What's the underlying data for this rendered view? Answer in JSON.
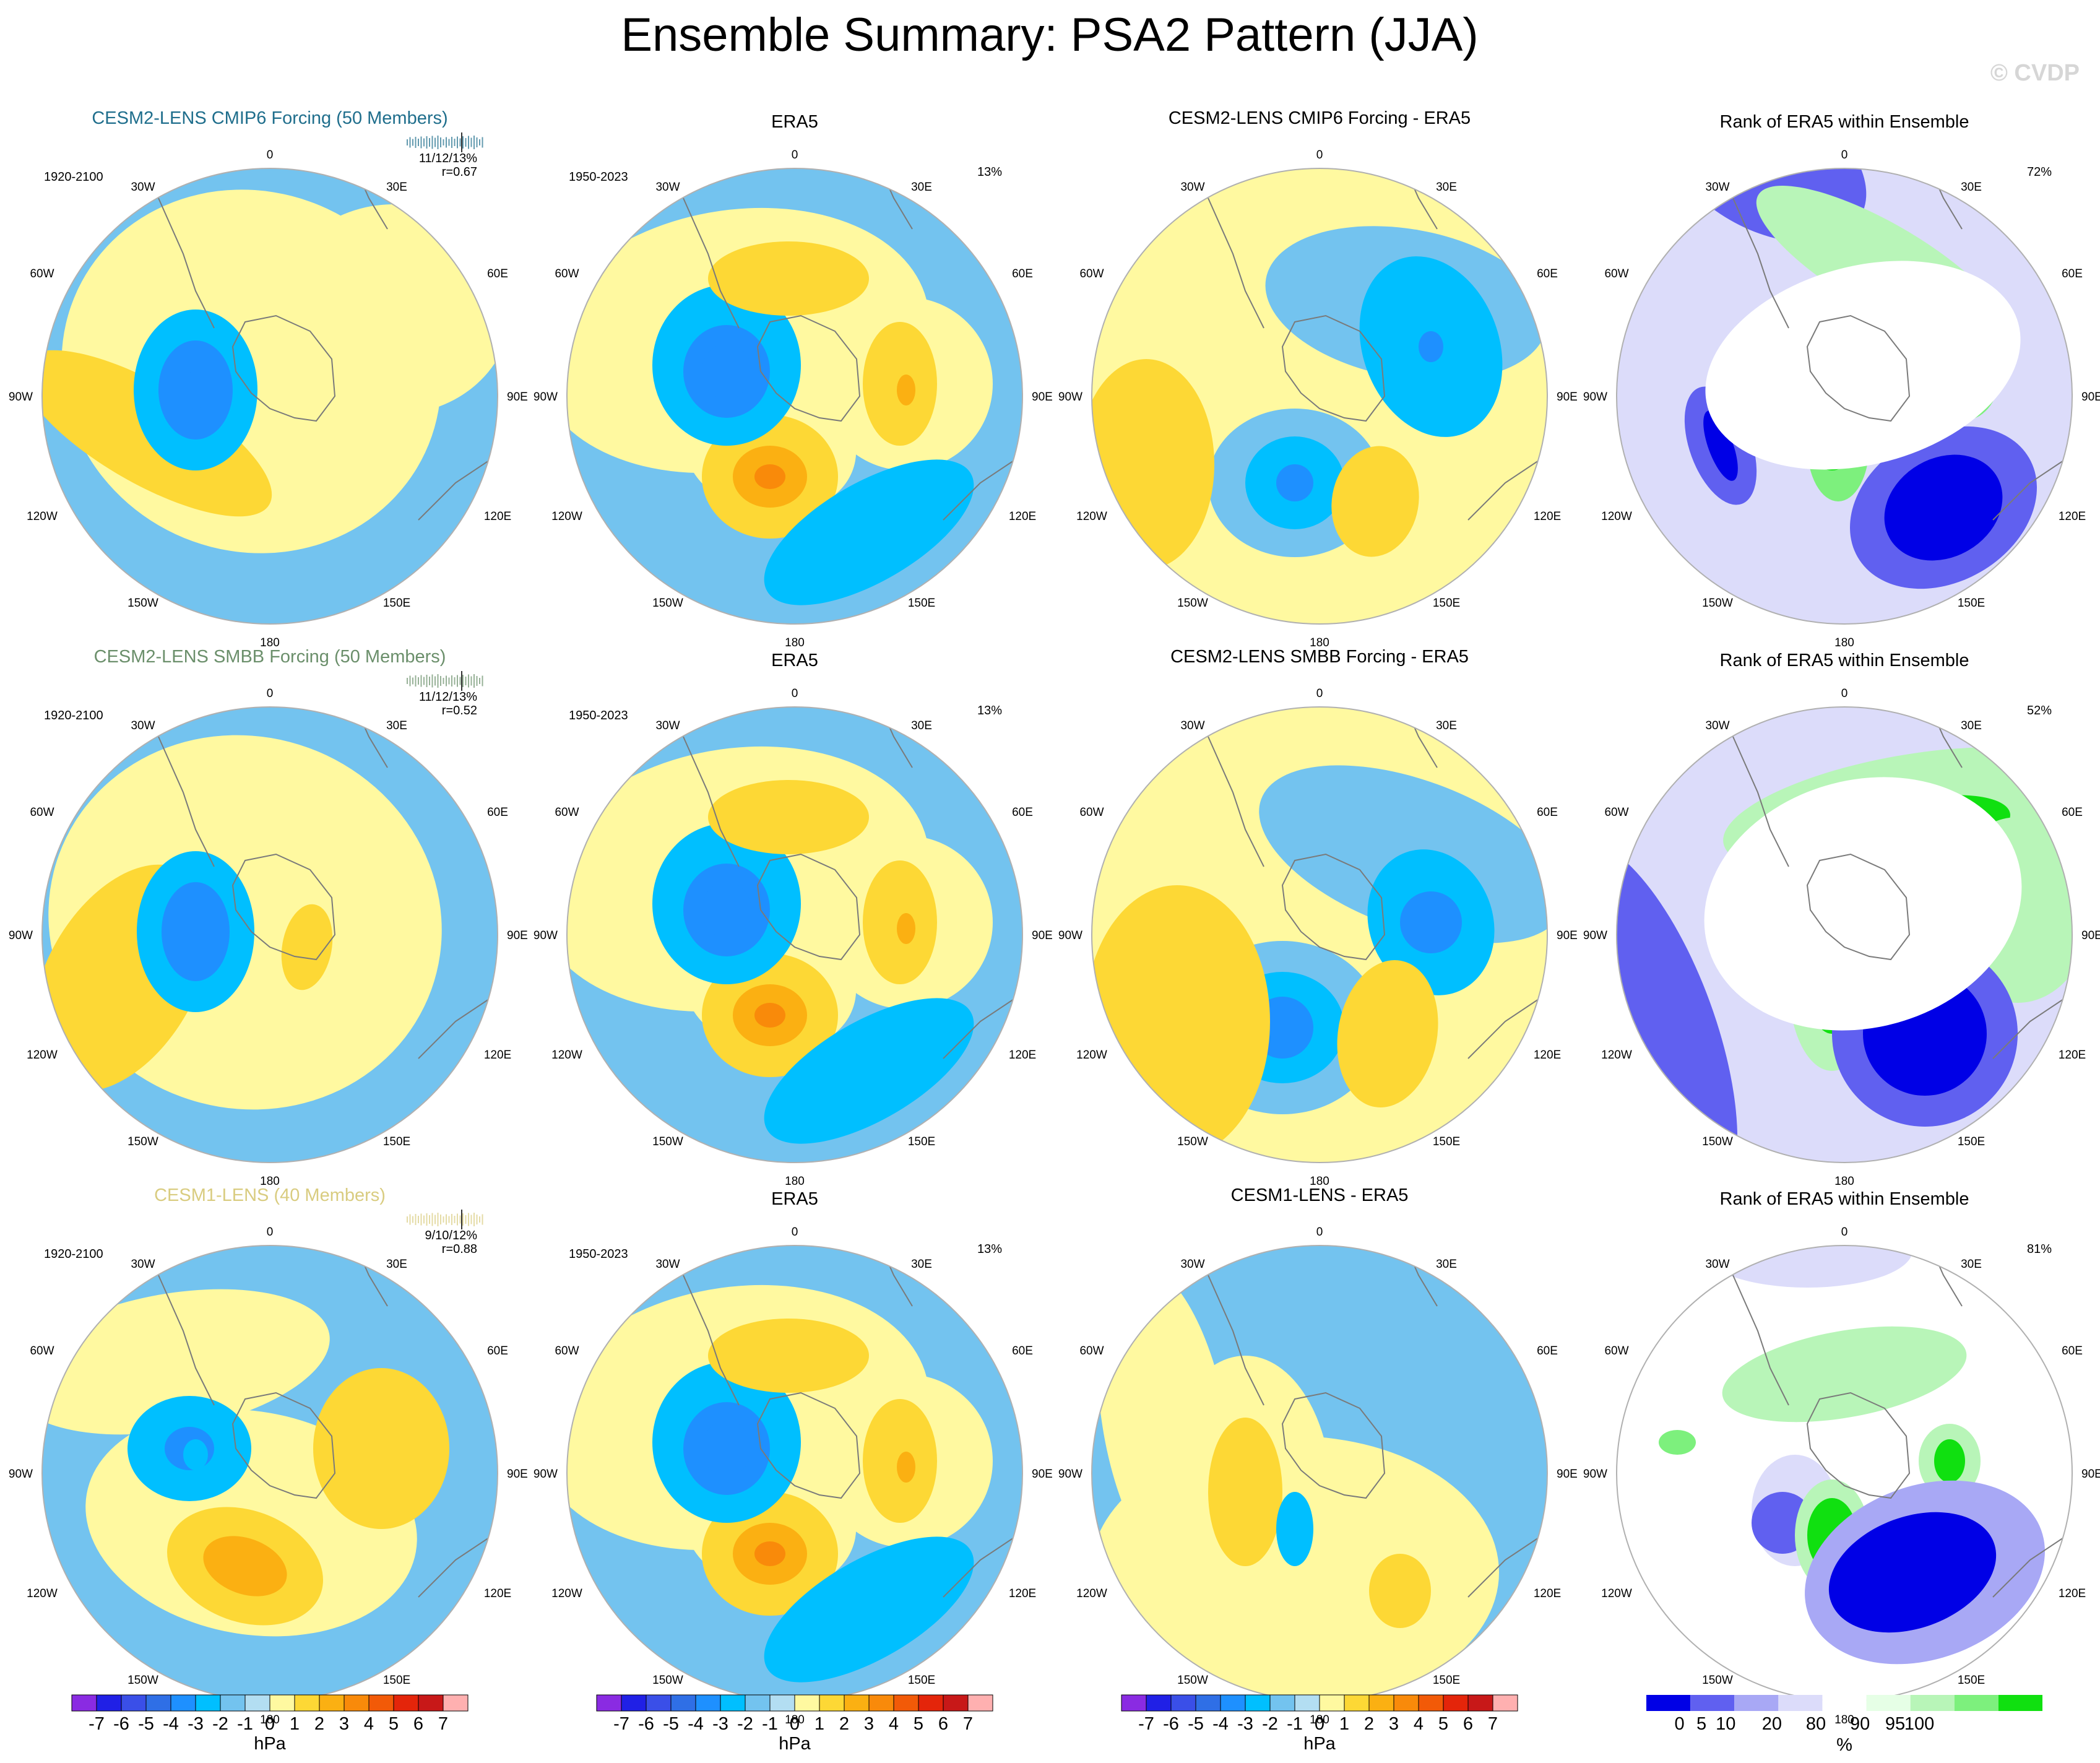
{
  "title": "Ensemble Summary: PSA2 Pattern (JJA)",
  "watermark": "© CVDP",
  "colors": {
    "hpa_scale": [
      "#8a2be2",
      "#2020e6",
      "#3a4fe8",
      "#2f6fe6",
      "#1e90ff",
      "#00bfff",
      "#73c3ef",
      "#b3def2",
      "#fff9a0",
      "#fdd835",
      "#fbb012",
      "#f98a0a",
      "#f25a08",
      "#e4250a",
      "#c81818",
      "#ffb0b0"
    ],
    "rank_scale": [
      "#0000e6",
      "#6060f0",
      "#a8a8f5",
      "#dcdcfa",
      "#ffffff",
      "#e6ffe6",
      "#b8f5b8",
      "#7df07d",
      "#10e010"
    ],
    "rows": [
      "#1f6e8c",
      "#6b8f6b",
      "#d9cc80"
    ]
  },
  "rows": [
    {
      "model_title": "CESM2-LENS CMIP6 Forcing (50 Members)",
      "diff_title": "CESM2-LENS CMIP6 Forcing - ERA5",
      "model_period": "1920-2100",
      "pattern_stat": "11/12/13%",
      "pattern_corr": "r=0.67",
      "rank_pct": "72%"
    },
    {
      "model_title": "CESM2-LENS SMBB Forcing (50 Members)",
      "diff_title": "CESM2-LENS SMBB Forcing - ERA5",
      "model_period": "1920-2100",
      "pattern_stat": "11/12/13%",
      "pattern_corr": "r=0.52",
      "rank_pct": "52%"
    },
    {
      "model_title": "CESM1-LENS (40 Members)",
      "diff_title": "CESM1-LENS - ERA5",
      "model_period": "1920-2100",
      "pattern_stat": "9/10/12%",
      "pattern_corr": "r=0.88",
      "rank_pct": "81%"
    }
  ],
  "obs": {
    "title": "ERA5",
    "period": "1950-2023",
    "var_pct": "13%"
  },
  "rank_title": "Rank of ERA5 within Ensemble",
  "lon_labels": {
    "top": "0",
    "bottom": "180",
    "n30w": "30W",
    "n30e": "30E",
    "n60w": "60W",
    "n60e": "60E",
    "w90": "90W",
    "e90": "90E",
    "s120w": "120W",
    "s120e": "120E",
    "s150w": "150W",
    "s150e": "150E"
  },
  "chart_data": [
    {
      "type": "colorbar",
      "units": "hPa",
      "levels": [
        "-7",
        "-6",
        "-5",
        "-4",
        "-3",
        "-2",
        "-1",
        "0",
        "1",
        "2",
        "3",
        "4",
        "5",
        "6",
        "7"
      ]
    },
    {
      "type": "colorbar",
      "units": "%",
      "labels": [
        "0",
        "5",
        "10",
        "20",
        "80",
        "90",
        "95",
        "100"
      ]
    }
  ]
}
